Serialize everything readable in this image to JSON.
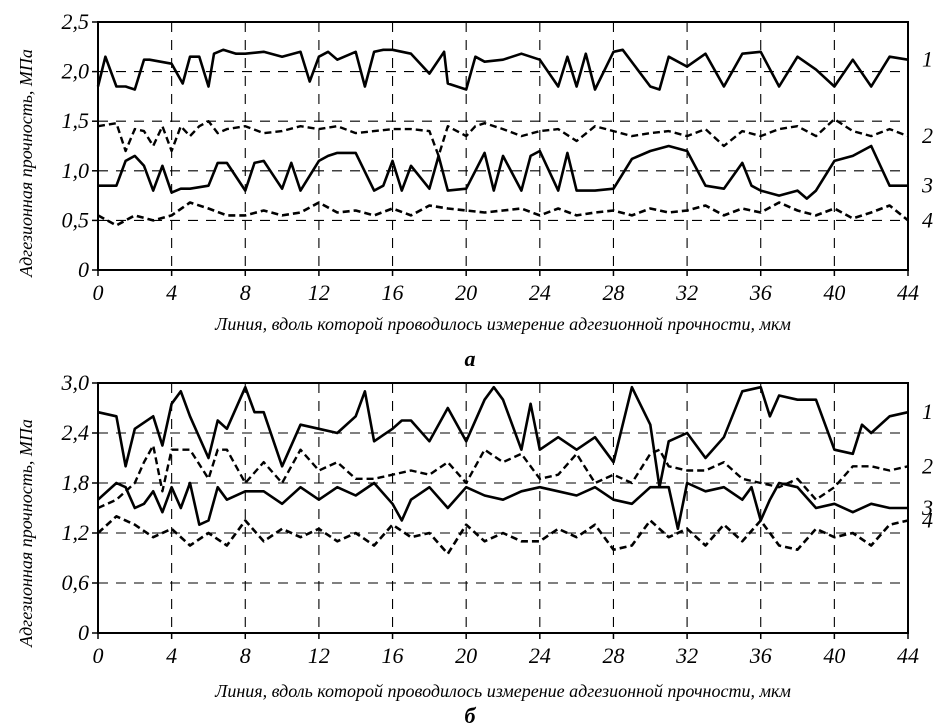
{
  "figure": {
    "ylabel": "Адгезионная прочность, МПа",
    "xlabel": "Линия, вдоль которой проводилось измерение адгезионной прочности, мкм"
  },
  "chart_data": [
    {
      "type": "line",
      "caption": "а",
      "xlabel": "Линия, вдоль которой проводилось измерение адгезионной прочности, мкм",
      "ylabel": "Адгезионная прочность, МПа",
      "xlim": [
        0,
        44
      ],
      "ylim": [
        0,
        2.5
      ],
      "xticks": [
        0,
        4,
        8,
        12,
        16,
        20,
        24,
        28,
        32,
        36,
        40,
        44
      ],
      "yticks": [
        0,
        0.5,
        1.0,
        1.5,
        2.0,
        2.5
      ],
      "ytick_labels": [
        "0",
        "0,5",
        "1,0",
        "1,5",
        "2,0",
        "2,5"
      ],
      "grid": true,
      "series": [
        {
          "name": "1",
          "style": "solid",
          "x": [
            0,
            0.4,
            1,
            1.5,
            2,
            2.5,
            2.8,
            4,
            4.6,
            5,
            5.5,
            6,
            6.3,
            6.8,
            7.5,
            8,
            9,
            10,
            11,
            11.5,
            12,
            12.5,
            13,
            14,
            14.5,
            15,
            15.5,
            16,
            17,
            18,
            18.8,
            19,
            20,
            20.5,
            21,
            22,
            23,
            24,
            25,
            25.5,
            26,
            26.5,
            27,
            28,
            28.5,
            30,
            30.5,
            31,
            32,
            33,
            34,
            35,
            36,
            37,
            38,
            39,
            40,
            41,
            42,
            43,
            44
          ],
          "y": [
            1.85,
            2.15,
            1.85,
            1.85,
            1.82,
            2.12,
            2.12,
            2.08,
            1.88,
            2.15,
            2.15,
            1.85,
            2.18,
            2.22,
            2.18,
            2.18,
            2.2,
            2.15,
            2.2,
            1.9,
            2.15,
            2.2,
            2.12,
            2.2,
            1.85,
            2.2,
            2.22,
            2.22,
            2.18,
            1.98,
            2.2,
            1.88,
            1.82,
            2.15,
            2.1,
            2.12,
            2.18,
            2.12,
            1.85,
            2.15,
            1.85,
            2.18,
            1.82,
            2.2,
            2.22,
            1.85,
            1.82,
            2.15,
            2.05,
            2.18,
            1.85,
            2.18,
            2.2,
            1.85,
            2.15,
            2.02,
            1.85,
            2.12,
            1.85,
            2.15,
            2.12
          ]
        },
        {
          "name": "2",
          "style": "dash",
          "x": [
            0,
            1,
            1.5,
            2,
            2.5,
            3,
            3.5,
            4,
            4.5,
            5,
            5.5,
            6,
            6.5,
            7,
            8,
            9,
            10,
            11,
            12,
            13,
            14,
            15,
            16,
            17,
            18,
            18.5,
            19,
            20,
            20.5,
            21,
            22,
            23,
            24,
            25,
            26,
            27,
            28,
            29,
            30,
            31,
            32,
            33,
            34,
            35,
            36,
            37,
            38,
            39,
            40,
            41,
            42,
            43,
            44
          ],
          "y": [
            1.45,
            1.48,
            1.2,
            1.42,
            1.4,
            1.25,
            1.45,
            1.2,
            1.45,
            1.35,
            1.45,
            1.5,
            1.38,
            1.42,
            1.45,
            1.38,
            1.4,
            1.45,
            1.42,
            1.45,
            1.38,
            1.4,
            1.42,
            1.42,
            1.4,
            1.15,
            1.45,
            1.35,
            1.45,
            1.48,
            1.42,
            1.35,
            1.4,
            1.42,
            1.3,
            1.45,
            1.4,
            1.35,
            1.38,
            1.4,
            1.35,
            1.42,
            1.25,
            1.4,
            1.35,
            1.42,
            1.45,
            1.35,
            1.52,
            1.4,
            1.35,
            1.42,
            1.35
          ]
        },
        {
          "name": "3",
          "style": "solid",
          "x": [
            0,
            1,
            1.5,
            2,
            2.5,
            3,
            3.5,
            4,
            4.5,
            5,
            6,
            6.5,
            7,
            8,
            8.5,
            9,
            10,
            10.5,
            11,
            12,
            12.5,
            13,
            14,
            15,
            15.5,
            16,
            16.5,
            17,
            18,
            18.5,
            19,
            20,
            21,
            21.5,
            22,
            23,
            23.5,
            24,
            25,
            25.5,
            26,
            27,
            28,
            29,
            30,
            31,
            32,
            33,
            34,
            35,
            35.5,
            36,
            37,
            38,
            38.5,
            39,
            40,
            41,
            42,
            43,
            44
          ],
          "y": [
            0.85,
            0.85,
            1.1,
            1.15,
            1.05,
            0.8,
            1.05,
            0.78,
            0.82,
            0.82,
            0.85,
            1.08,
            1.08,
            0.8,
            1.08,
            1.1,
            0.82,
            1.08,
            0.8,
            1.1,
            1.15,
            1.18,
            1.18,
            0.8,
            0.85,
            1.1,
            0.8,
            1.05,
            0.82,
            1.15,
            0.8,
            0.82,
            1.18,
            0.8,
            1.15,
            0.8,
            1.15,
            1.2,
            0.8,
            1.18,
            0.8,
            0.8,
            0.82,
            1.12,
            1.2,
            1.25,
            1.2,
            0.85,
            0.82,
            1.08,
            0.85,
            0.8,
            0.75,
            0.8,
            0.72,
            0.8,
            1.1,
            1.15,
            1.25,
            0.85,
            0.85
          ]
        },
        {
          "name": "4",
          "style": "dash",
          "x": [
            0,
            1,
            2,
            3,
            4,
            5,
            6,
            7,
            8,
            9,
            10,
            11,
            12,
            13,
            14,
            15,
            16,
            17,
            18,
            19,
            20,
            21,
            22,
            23,
            24,
            25,
            26,
            27,
            28,
            29,
            30,
            31,
            32,
            33,
            34,
            35,
            36,
            37,
            38,
            39,
            40,
            41,
            42,
            43,
            44
          ],
          "y": [
            0.55,
            0.45,
            0.55,
            0.5,
            0.55,
            0.68,
            0.62,
            0.55,
            0.55,
            0.6,
            0.55,
            0.58,
            0.68,
            0.58,
            0.6,
            0.55,
            0.62,
            0.55,
            0.65,
            0.62,
            0.6,
            0.58,
            0.6,
            0.62,
            0.55,
            0.62,
            0.55,
            0.58,
            0.6,
            0.55,
            0.62,
            0.58,
            0.6,
            0.65,
            0.55,
            0.62,
            0.58,
            0.68,
            0.6,
            0.55,
            0.62,
            0.52,
            0.58,
            0.65,
            0.5
          ]
        }
      ]
    },
    {
      "type": "line",
      "caption": "б",
      "xlabel": "Линия, вдоль которой проводилось измерение адгезионной прочности, мкм",
      "ylabel": "Адгезионная прочность, МПа",
      "xlim": [
        0,
        44
      ],
      "ylim": [
        0,
        3.0
      ],
      "xticks": [
        0,
        4,
        8,
        12,
        16,
        20,
        24,
        28,
        32,
        36,
        40,
        44
      ],
      "yticks": [
        0,
        0.6,
        1.2,
        1.8,
        2.4,
        3.0
      ],
      "ytick_labels": [
        "0",
        "0,6",
        "1,2",
        "1,8",
        "2,4",
        "3,0"
      ],
      "grid": true,
      "series": [
        {
          "name": "1",
          "style": "solid",
          "x": [
            0,
            1,
            1.5,
            2,
            3,
            3.5,
            4,
            4.5,
            5,
            6,
            6.5,
            7,
            8,
            8.5,
            9,
            10,
            11,
            12,
            13,
            14,
            14.5,
            15,
            16,
            16.5,
            17,
            18,
            19,
            20,
            21,
            21.5,
            22,
            23,
            23.5,
            24,
            25,
            26,
            27,
            28,
            29,
            30,
            30.5,
            31,
            32,
            33,
            34,
            35,
            36,
            36.5,
            37,
            38,
            39,
            40,
            41,
            41.5,
            42,
            43,
            44
          ],
          "y": [
            2.65,
            2.6,
            2.0,
            2.45,
            2.6,
            2.25,
            2.75,
            2.9,
            2.6,
            2.1,
            2.55,
            2.45,
            2.95,
            2.65,
            2.65,
            2.0,
            2.5,
            2.45,
            2.4,
            2.6,
            2.9,
            2.3,
            2.45,
            2.55,
            2.55,
            2.3,
            2.7,
            2.3,
            2.8,
            2.95,
            2.8,
            2.2,
            2.75,
            2.2,
            2.35,
            2.2,
            2.35,
            2.05,
            2.95,
            2.5,
            1.75,
            2.3,
            2.4,
            2.1,
            2.35,
            2.9,
            2.95,
            2.6,
            2.85,
            2.8,
            2.8,
            2.2,
            2.15,
            2.5,
            2.4,
            2.6,
            2.65
          ]
        },
        {
          "name": "2",
          "style": "dash",
          "x": [
            0,
            1,
            2,
            2.5,
            3,
            3.5,
            4,
            5,
            6,
            6.5,
            7,
            8,
            9,
            10,
            11,
            12,
            13,
            14,
            15,
            16,
            17,
            18,
            19,
            20,
            21,
            22,
            23,
            24,
            25,
            26,
            27,
            28,
            29,
            30,
            30.5,
            31,
            32,
            33,
            34,
            35,
            36,
            37,
            38,
            39,
            40,
            41,
            42,
            43,
            44
          ],
          "y": [
            1.5,
            1.6,
            1.8,
            2.05,
            2.25,
            1.7,
            2.2,
            2.2,
            1.85,
            2.2,
            2.2,
            1.8,
            2.05,
            1.8,
            2.2,
            1.95,
            2.05,
            1.85,
            1.85,
            1.9,
            1.95,
            1.9,
            2.05,
            1.8,
            2.2,
            2.05,
            2.15,
            1.85,
            1.9,
            2.15,
            1.8,
            1.9,
            1.8,
            2.15,
            2.2,
            2.0,
            1.95,
            1.95,
            2.05,
            1.85,
            1.8,
            1.75,
            1.85,
            1.6,
            1.75,
            2.0,
            2.0,
            1.95,
            2.0
          ]
        },
        {
          "name": "3",
          "style": "solid",
          "x": [
            0,
            1,
            1.5,
            2,
            2.5,
            3,
            3.5,
            4,
            4.5,
            5,
            5.5,
            6,
            6.5,
            7,
            8,
            9,
            10,
            11,
            12,
            13,
            14,
            15,
            16,
            16.5,
            17,
            18,
            19,
            20,
            21,
            22,
            23,
            24,
            25,
            26,
            27,
            28,
            29,
            30,
            31,
            31.5,
            32,
            33,
            34,
            35,
            35.5,
            36,
            36.5,
            37,
            38,
            39,
            40,
            41,
            42,
            43,
            44
          ],
          "y": [
            1.6,
            1.8,
            1.75,
            1.5,
            1.55,
            1.7,
            1.45,
            1.75,
            1.5,
            1.8,
            1.3,
            1.35,
            1.75,
            1.6,
            1.7,
            1.7,
            1.55,
            1.75,
            1.6,
            1.75,
            1.65,
            1.8,
            1.55,
            1.35,
            1.6,
            1.75,
            1.5,
            1.75,
            1.65,
            1.6,
            1.7,
            1.75,
            1.7,
            1.65,
            1.75,
            1.6,
            1.55,
            1.75,
            1.75,
            1.25,
            1.8,
            1.7,
            1.75,
            1.6,
            1.75,
            1.35,
            1.6,
            1.8,
            1.75,
            1.5,
            1.55,
            1.45,
            1.55,
            1.5,
            1.5
          ]
        },
        {
          "name": "4",
          "style": "dash",
          "x": [
            0,
            1,
            2,
            3,
            4,
            5,
            6,
            7,
            8,
            9,
            10,
            11,
            12,
            13,
            14,
            15,
            16,
            17,
            18,
            19,
            20,
            21,
            22,
            23,
            24,
            25,
            26,
            27,
            28,
            29,
            30,
            31,
            32,
            33,
            34,
            35,
            36,
            37,
            38,
            39,
            40,
            41,
            42,
            43,
            44
          ],
          "y": [
            1.2,
            1.4,
            1.3,
            1.15,
            1.25,
            1.05,
            1.2,
            1.05,
            1.35,
            1.1,
            1.25,
            1.15,
            1.25,
            1.1,
            1.2,
            1.05,
            1.3,
            1.15,
            1.2,
            0.95,
            1.3,
            1.1,
            1.2,
            1.1,
            1.1,
            1.25,
            1.15,
            1.3,
            1.0,
            1.05,
            1.35,
            1.15,
            1.25,
            1.05,
            1.3,
            1.1,
            1.35,
            1.05,
            1.0,
            1.25,
            1.15,
            1.2,
            1.05,
            1.3,
            1.35
          ]
        }
      ]
    }
  ]
}
